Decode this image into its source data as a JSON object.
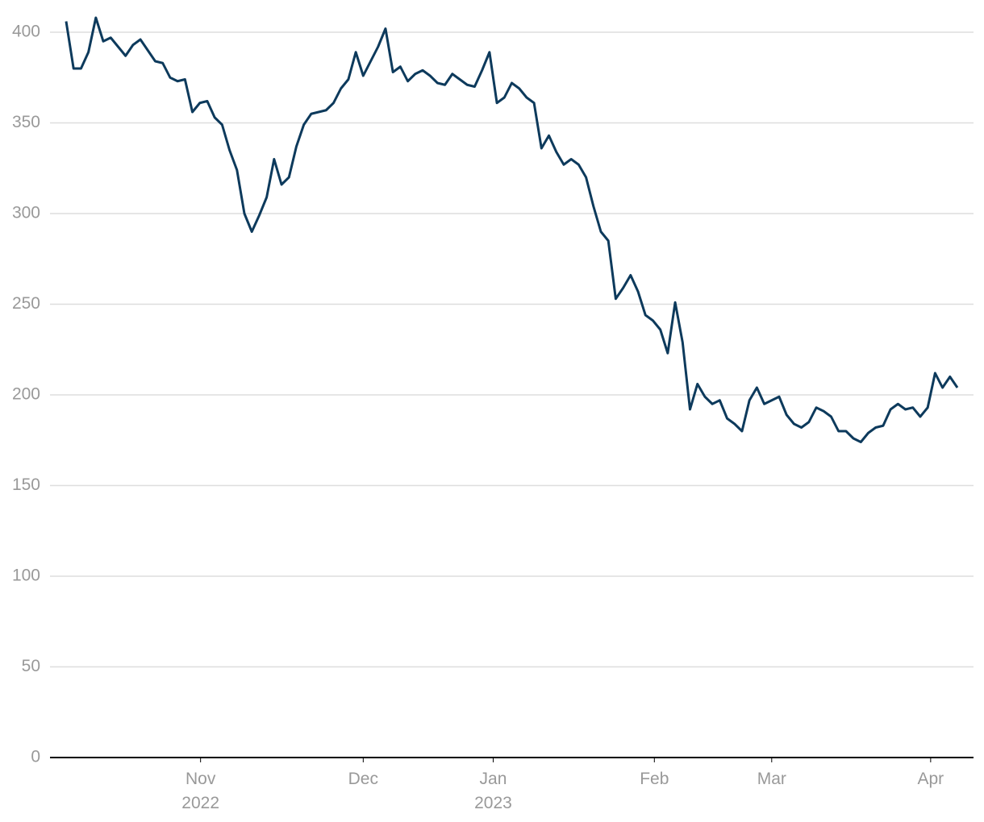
{
  "chart_data": {
    "type": "line",
    "series": [
      {
        "color": "#0d3a5c",
        "values": [
          406,
          380,
          380,
          389,
          408,
          395,
          397,
          392,
          387,
          393,
          396,
          390,
          384,
          383,
          375,
          373,
          374,
          356,
          361,
          362,
          353,
          349,
          335,
          324,
          300,
          290,
          299,
          309,
          330,
          316,
          320,
          337,
          349,
          355,
          356,
          357,
          361,
          369,
          374,
          389,
          376,
          384,
          392,
          402,
          378,
          381,
          373,
          377,
          379,
          376,
          372,
          371,
          377,
          374,
          371,
          370,
          379,
          389,
          361,
          364,
          372,
          369,
          364,
          361,
          336,
          343,
          334,
          327,
          330,
          327,
          320,
          304,
          290,
          285,
          253,
          259,
          266,
          257,
          244,
          241,
          236,
          223,
          251,
          229,
          192,
          206,
          199,
          195,
          197,
          187,
          184,
          180,
          197,
          204,
          195,
          197,
          199,
          189,
          184,
          182,
          185,
          193,
          191,
          188,
          180,
          180,
          176,
          174,
          179,
          182,
          183,
          192,
          195,
          192,
          193,
          188,
          193,
          212,
          204,
          210,
          204
        ]
      }
    ],
    "xlim": [
      0,
      120
    ],
    "xticks": [
      {
        "value": 18.1,
        "label": "Nov\n2022"
      },
      {
        "value": 40,
        "label": "Dec"
      },
      {
        "value": 57.5,
        "label": "Jan\n2023"
      },
      {
        "value": 79.2,
        "label": "Feb"
      },
      {
        "value": 95,
        "label": "Mar"
      },
      {
        "value": 116.4,
        "label": "Apr"
      }
    ],
    "ylim": [
      0,
      400
    ],
    "yticks": [
      0,
      50,
      100,
      150,
      200,
      250,
      300,
      350,
      400
    ],
    "grid": true
  }
}
